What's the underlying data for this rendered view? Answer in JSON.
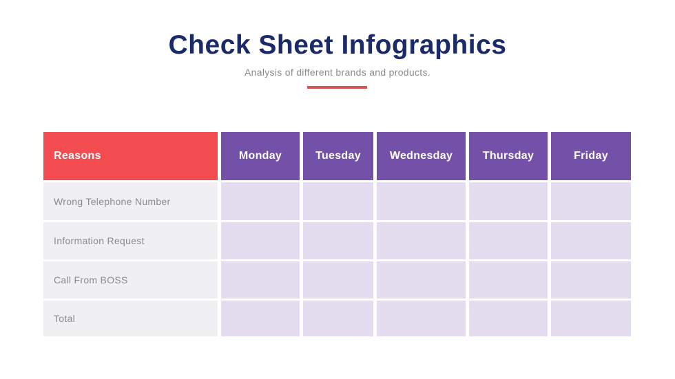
{
  "header": {
    "title": "Check Sheet Infographics",
    "subtitle": "Analysis of different brands and products."
  },
  "table": {
    "columns": [
      "Reasons",
      "Monday",
      "Tuesday",
      "Wednesday",
      "Thursday",
      "Friday"
    ],
    "rows": [
      {
        "label": "Wrong Telephone Number",
        "values": [
          "",
          "",
          "",
          "",
          ""
        ]
      },
      {
        "label": "Information Request",
        "values": [
          "",
          "",
          "",
          "",
          ""
        ]
      },
      {
        "label": "Call From BOSS",
        "values": [
          "",
          "",
          "",
          "",
          ""
        ]
      },
      {
        "label": "Total",
        "values": [
          "",
          "",
          "",
          "",
          ""
        ]
      }
    ]
  },
  "colors": {
    "accent_red": "#F24B50",
    "accent_purple": "#7351A9",
    "cell_purple": "#E3DDEF",
    "cell_gray": "#F0EFF1",
    "title_navy": "#1B2A68",
    "divider_red": "#D25459",
    "text_gray": "#8A8A8F"
  }
}
